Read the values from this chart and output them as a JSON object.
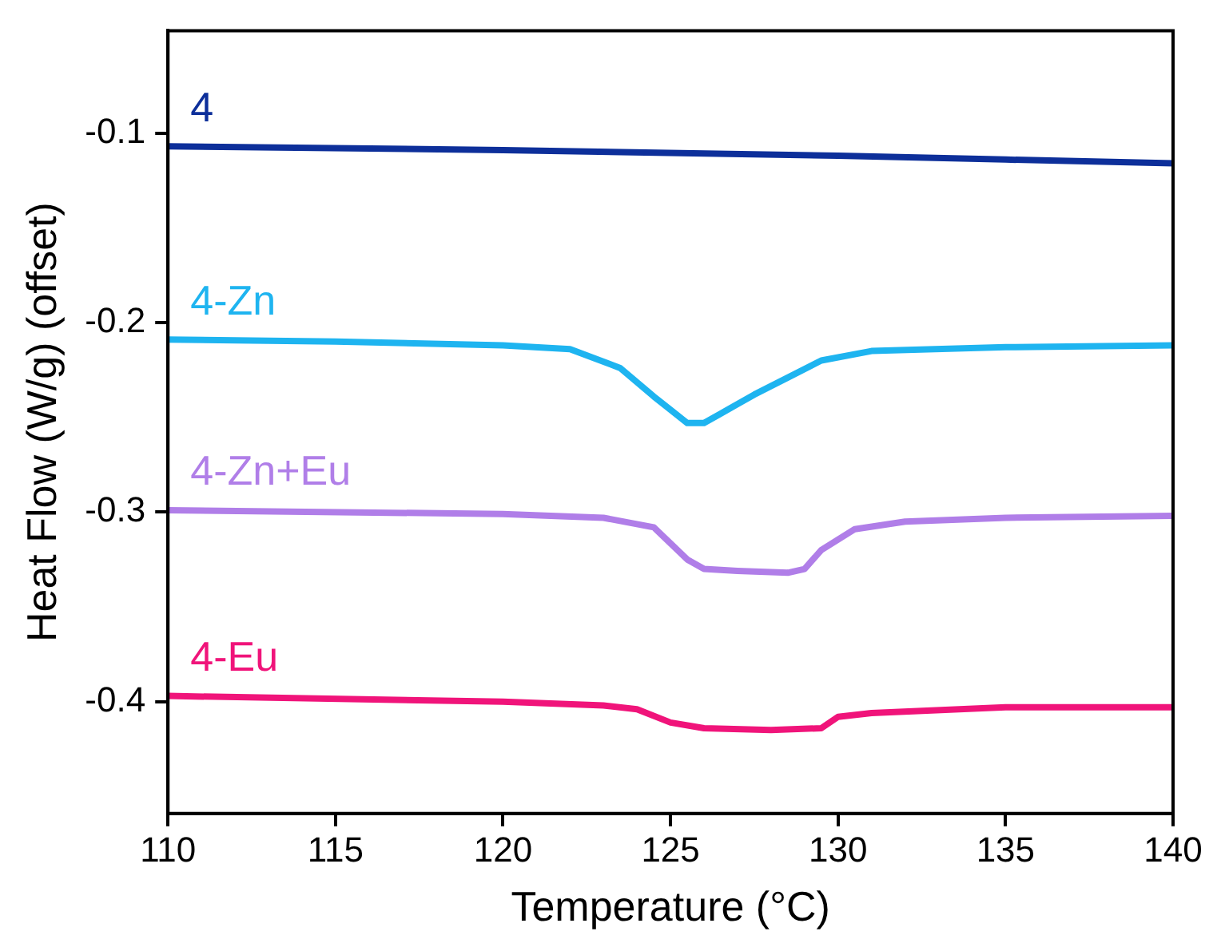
{
  "chart_data": {
    "type": "line",
    "xlabel": "Temperature (°C)",
    "ylabel": "Heat Flow (W/g) (offset)",
    "xlim": [
      110,
      140
    ],
    "xticks": [
      110,
      115,
      120,
      125,
      130,
      135,
      140
    ],
    "ylim": [
      -0.459,
      -0.046
    ],
    "yticks": [
      -0.1,
      -0.2,
      -0.3,
      -0.4
    ],
    "grid": false,
    "legend": false,
    "marker": "none",
    "line_style": "solid",
    "series": [
      {
        "name": "4",
        "color": "#0d2f9a",
        "x": [
          110,
          120,
          130,
          135,
          140
        ],
        "values": [
          -0.107,
          -0.109,
          -0.112,
          -0.114,
          -0.116
        ]
      },
      {
        "name": "4-Zn",
        "color": "#1eb4f0",
        "x": [
          110,
          115,
          120,
          122,
          123.5,
          124.5,
          125.5,
          126,
          126.5,
          127.5,
          128.5,
          129.5,
          131,
          135,
          140
        ],
        "values": [
          -0.209,
          -0.21,
          -0.212,
          -0.214,
          -0.224,
          -0.239,
          -0.253,
          -0.253,
          -0.248,
          -0.238,
          -0.229,
          -0.22,
          -0.215,
          -0.213,
          -0.212
        ]
      },
      {
        "name": "4-Zn+Eu",
        "color": "#b07ee8",
        "x": [
          110,
          120,
          123,
          124.5,
          125.5,
          126,
          127,
          128.5,
          129,
          129.5,
          130.5,
          132,
          135,
          140
        ],
        "values": [
          -0.299,
          -0.301,
          -0.303,
          -0.308,
          -0.325,
          -0.33,
          -0.331,
          -0.332,
          -0.33,
          -0.32,
          -0.309,
          -0.305,
          -0.303,
          -0.302
        ]
      },
      {
        "name": "4-Eu",
        "color": "#f0147a",
        "x": [
          110,
          120,
          123,
          124,
          125,
          126,
          128,
          129.5,
          130,
          131,
          135,
          140
        ],
        "values": [
          -0.397,
          -0.4,
          -0.402,
          -0.404,
          -0.411,
          -0.414,
          -0.415,
          -0.414,
          -0.408,
          -0.406,
          -0.403,
          -0.403
        ]
      }
    ]
  }
}
